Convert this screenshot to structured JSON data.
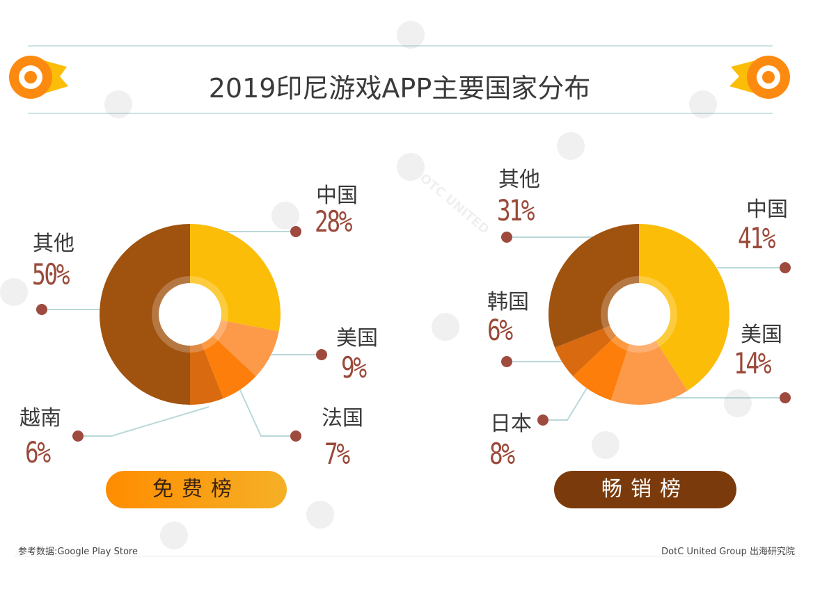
{
  "title": "2019印尼游戏APP主要国家分布",
  "colors": {
    "others": "#a0520f",
    "china": "#fbbd08",
    "usa": "#fd9a4a",
    "france": "#fd7e0a",
    "vietnam": "#d96a10",
    "japan": "#fd7e0a",
    "korea": "#d96a10",
    "label_pct": "#9a4a3a",
    "leader": "#b9d8d8",
    "dot": "#9e4a3e"
  },
  "chart_data": [
    {
      "type": "pie",
      "subtype": "donut",
      "title": "免费榜",
      "categories": [
        "中国",
        "美国",
        "法国",
        "越南",
        "其他"
      ],
      "values": [
        28,
        9,
        7,
        6,
        50
      ],
      "labels": [
        "28%",
        "9%",
        "7%",
        "6%",
        "50%"
      ]
    },
    {
      "type": "pie",
      "subtype": "donut",
      "title": "畅销榜",
      "categories": [
        "中国",
        "美国",
        "日本",
        "韩国",
        "其他"
      ],
      "values": [
        41,
        14,
        8,
        6,
        31
      ],
      "labels": [
        "41%",
        "14%",
        "8%",
        "6%",
        "31%"
      ]
    }
  ],
  "footer": {
    "source": "参考数据:Google Play Store",
    "credit": "DotC United Group  出海研究院"
  },
  "watermark": "DOTC UNITED"
}
